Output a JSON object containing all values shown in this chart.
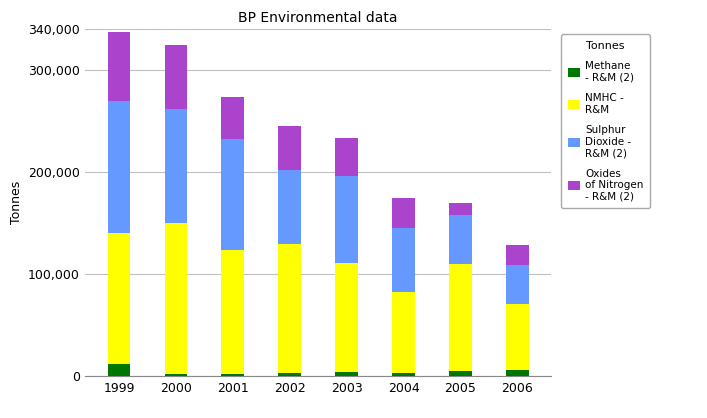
{
  "title": "BP Environmental data",
  "ylabel": "Tonnes",
  "years": [
    "1999",
    "2000",
    "2001",
    "2002",
    "2003",
    "2004",
    "2005",
    "2006"
  ],
  "methane": [
    12000,
    2000,
    2000,
    3000,
    4000,
    3000,
    5000,
    6000
  ],
  "nmhc": [
    128000,
    148000,
    122000,
    127000,
    107000,
    80000,
    105000,
    65000
  ],
  "so2": [
    130000,
    112000,
    108000,
    72000,
    85000,
    62000,
    48000,
    38000
  ],
  "nox": [
    67000,
    63000,
    42000,
    43000,
    37000,
    30000,
    12000,
    20000
  ],
  "colors": {
    "methane": "#007700",
    "nmhc": "#ffff00",
    "so2": "#6699ff",
    "nox": "#aa44cc"
  },
  "legend_title": "Tonnes",
  "legend_labels": [
    "Methane\n- R&M (2)",
    "NMHC -\nR&M",
    "Sulphur\nDioxide -\nR&M (2)",
    "Oxides\nof Nitrogen\n- R&M (2)"
  ],
  "ylim": [
    0,
    340000
  ],
  "yticks": [
    0,
    100000,
    200000,
    300000,
    340000
  ],
  "background_color": "#ffffff",
  "plot_bg_color": "#ffffff",
  "grid_color": "#c0c0c0",
  "bar_width": 0.4,
  "figsize": [
    7.07,
    4.18
  ],
  "dpi": 100
}
